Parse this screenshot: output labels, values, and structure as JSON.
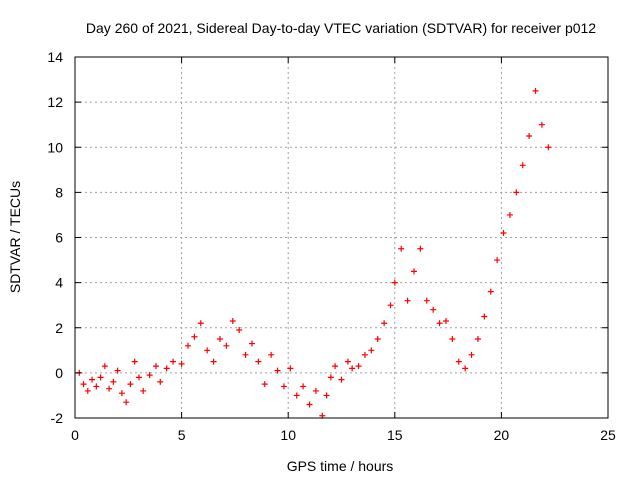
{
  "chart_data": {
    "type": "scatter",
    "title": "Day 260 of 2021, Sidereal Day-to-day VTEC variation (SDTVAR) for receiver p012",
    "xlabel": "GPS time / hours",
    "ylabel": "SDTVAR / TECUs",
    "xlim": [
      0,
      25
    ],
    "ylim": [
      -2,
      14
    ],
    "xticks": [
      0,
      5,
      10,
      15,
      20,
      25
    ],
    "yticks": [
      -2,
      0,
      2,
      4,
      6,
      8,
      10,
      12,
      14
    ],
    "grid": true,
    "marker": "+",
    "color": "#ff0000",
    "series": [
      {
        "name": "SDTVAR",
        "x": [
          0.2,
          0.4,
          0.6,
          0.8,
          1.0,
          1.2,
          1.4,
          1.6,
          1.8,
          2.0,
          2.2,
          2.4,
          2.6,
          2.8,
          3.0,
          3.2,
          3.5,
          3.8,
          4.0,
          4.3,
          4.6,
          5.0,
          5.3,
          5.6,
          5.9,
          6.2,
          6.5,
          6.8,
          7.1,
          7.4,
          7.7,
          8.0,
          8.3,
          8.6,
          8.9,
          9.2,
          9.5,
          9.8,
          10.1,
          10.4,
          10.7,
          11.0,
          11.3,
          11.6,
          11.8,
          12.0,
          12.2,
          12.5,
          12.8,
          13.0,
          13.3,
          13.6,
          13.9,
          14.2,
          14.5,
          14.8,
          15.0,
          15.3,
          15.6,
          15.9,
          16.2,
          16.5,
          16.8,
          17.1,
          17.4,
          17.7,
          18.0,
          18.3,
          18.6,
          18.9,
          19.2,
          19.5,
          19.8,
          20.1,
          20.4,
          20.7,
          21.0,
          21.3,
          21.6,
          21.9,
          22.2
        ],
        "y": [
          0.0,
          -0.5,
          -0.8,
          -0.3,
          -0.6,
          -0.2,
          0.3,
          -0.7,
          -0.4,
          0.1,
          -0.9,
          -1.3,
          -0.5,
          0.5,
          -0.2,
          -0.8,
          -0.1,
          0.3,
          -0.4,
          0.2,
          0.5,
          0.4,
          1.2,
          1.6,
          2.2,
          1.0,
          0.5,
          1.5,
          1.2,
          2.3,
          1.9,
          0.8,
          1.3,
          0.5,
          -0.5,
          0.8,
          0.1,
          -0.6,
          0.2,
          -1.0,
          -0.6,
          -1.4,
          -0.8,
          -1.9,
          -1.0,
          -0.2,
          0.3,
          -0.3,
          0.5,
          0.2,
          0.3,
          0.8,
          1.0,
          1.5,
          2.2,
          3.0,
          4.0,
          5.5,
          3.2,
          4.5,
          5.5,
          3.2,
          2.8,
          2.2,
          2.3,
          1.5,
          0.5,
          0.2,
          0.8,
          1.5,
          2.5,
          3.6,
          5.0,
          6.2,
          7.0,
          8.0,
          9.2,
          10.5,
          12.5,
          11.0,
          10.0
        ]
      }
    ]
  }
}
